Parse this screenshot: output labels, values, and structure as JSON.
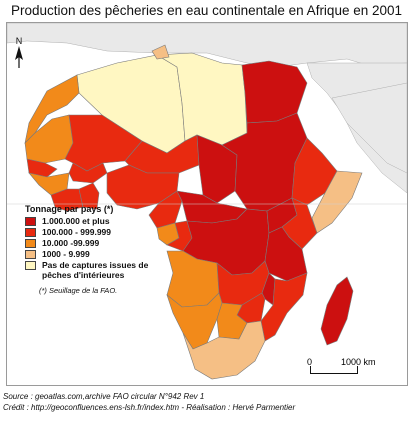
{
  "title": "Production des pêcheries en eau continentale en Afrique en 2001",
  "colors": {
    "class1": "#cc1010",
    "class2": "#e82a10",
    "class3": "#f28a1a",
    "class4": "#f5bf85",
    "class5": "#fff7c2",
    "outside": "#e9e9e9",
    "border": "#7a7a7a"
  },
  "north": {
    "label": "N",
    "icon": "north-arrow-icon"
  },
  "legend": {
    "title": "Tonnage par pays (*)",
    "items": [
      {
        "label": "1.000.000 et plus",
        "color": "#cc1010"
      },
      {
        "label": "100.000 - 999.999",
        "color": "#e82a10"
      },
      {
        "label": "10.000 -99.999",
        "color": "#f28a1a"
      },
      {
        "label": "1000 - 9.999",
        "color": "#f5bf85"
      },
      {
        "label": "Pas de captures issues de pêches d'intérieures",
        "color": "#fff7c2"
      }
    ],
    "note": "(*) Seuillage de la FAO."
  },
  "scale": {
    "start": "0",
    "end": "1000 km"
  },
  "footer": {
    "source": "Source : geoatlas.com,archive FAO circular N°942 Rev 1",
    "credit": "Crédit : http://geoconfluences.ens-lsh.fr/index.htm - Réalisation : Hervé Parmentier"
  }
}
